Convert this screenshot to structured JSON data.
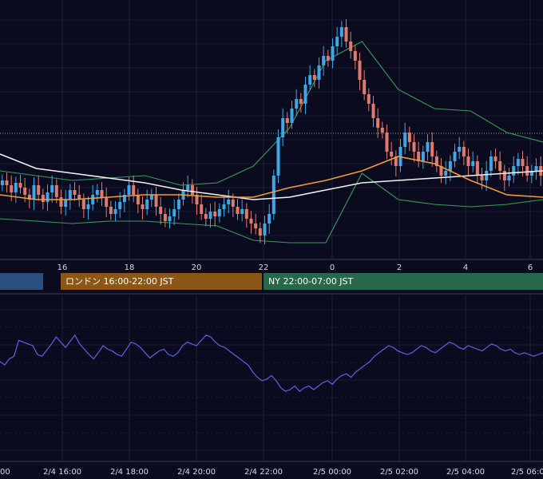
{
  "colors": {
    "background": "#0a0b1e",
    "grid": "#2a2d45",
    "candle_up": "#3fa7e6",
    "candle_down": "#e07a6e",
    "bollinger": "#3c9a5a",
    "ma_short": "#f29b3c",
    "ma_long": "#f2f2f2",
    "oscillator": "#5b63e6",
    "session_tokyo": "#2a4f7e",
    "session_london": "#8a5716",
    "session_ny": "#27684a"
  },
  "sessions": [
    {
      "label": "",
      "color": "#2a4f7e"
    },
    {
      "label": "ロンドン 16:00-22:00 JST",
      "color": "#8a5716"
    },
    {
      "label": "NY 22:00-07:00 JST",
      "color": "#27684a"
    }
  ],
  "chart_data": [
    {
      "type": "candlestick",
      "title": "",
      "x_tick_labels": [
        "16",
        "18",
        "20",
        "22",
        "0",
        "2",
        "4",
        "6"
      ],
      "series": [
        {
          "name": "",
          "kind": "bollinger_upper"
        },
        {
          "name": "",
          "kind": "bollinger_lower"
        },
        {
          "name": "",
          "kind": "ma_short"
        },
        {
          "name": "",
          "kind": "ma_long"
        }
      ],
      "ma_short": [
        0.78,
        0.8,
        0.8,
        0.79,
        0.78,
        0.78,
        0.79,
        0.79,
        0.75,
        0.72,
        0.68,
        0.62,
        0.65,
        0.72,
        0.78,
        0.79
      ],
      "ma_long": [
        0.61,
        0.67,
        0.69,
        0.71,
        0.73,
        0.76,
        0.78,
        0.8,
        0.79,
        0.76,
        0.73,
        0.72,
        0.71,
        0.7,
        0.69,
        0.68
      ],
      "bb_upper": [
        0.68,
        0.7,
        0.72,
        0.71,
        0.7,
        0.74,
        0.73,
        0.66,
        0.5,
        0.22,
        0.14,
        0.34,
        0.42,
        0.43,
        0.52,
        0.56
      ],
      "bb_lower": [
        0.88,
        0.89,
        0.9,
        0.89,
        0.89,
        0.9,
        0.91,
        0.97,
        0.98,
        0.98,
        0.69,
        0.8,
        0.82,
        0.83,
        0.82,
        0.8
      ],
      "closes": [
        0.72,
        0.74,
        0.77,
        0.73,
        0.75,
        0.78,
        0.8,
        0.74,
        0.78,
        0.81,
        0.77,
        0.74,
        0.79,
        0.83,
        0.8,
        0.76,
        0.78,
        0.8,
        0.84,
        0.82,
        0.78,
        0.76,
        0.79,
        0.83,
        0.86,
        0.84,
        0.81,
        0.78,
        0.74,
        0.78,
        0.82,
        0.84,
        0.8,
        0.78,
        0.83,
        0.86,
        0.89,
        0.87,
        0.84,
        0.8,
        0.76,
        0.74,
        0.78,
        0.82,
        0.86,
        0.88,
        0.85,
        0.87,
        0.84,
        0.82,
        0.8,
        0.83,
        0.86,
        0.84,
        0.88,
        0.9,
        0.92,
        0.95,
        0.9,
        0.86,
        0.7,
        0.54,
        0.46,
        0.48,
        0.42,
        0.38,
        0.4,
        0.32,
        0.28,
        0.3,
        0.24,
        0.2,
        0.22,
        0.16,
        0.12,
        0.08,
        0.14,
        0.18,
        0.22,
        0.3,
        0.36,
        0.4,
        0.46,
        0.5,
        0.52,
        0.6,
        0.62,
        0.66,
        0.58,
        0.52,
        0.56,
        0.6,
        0.64,
        0.6,
        0.56,
        0.62,
        0.66,
        0.7,
        0.68,
        0.64,
        0.6,
        0.58,
        0.62,
        0.66,
        0.64,
        0.7,
        0.72,
        0.68,
        0.62,
        0.64,
        0.68,
        0.72,
        0.7,
        0.66,
        0.63,
        0.66,
        0.7,
        0.68,
        0.66,
        0.7
      ],
      "oscillator": [
        0.52,
        0.48,
        0.55,
        0.58,
        0.76,
        0.74,
        0.72,
        0.7,
        0.6,
        0.58,
        0.65,
        0.72,
        0.8,
        0.74,
        0.68,
        0.75,
        0.82,
        0.72,
        0.66,
        0.6,
        0.55,
        0.62,
        0.7,
        0.66,
        0.64,
        0.6,
        0.58,
        0.66,
        0.74,
        0.72,
        0.68,
        0.62,
        0.56,
        0.6,
        0.64,
        0.66,
        0.6,
        0.58,
        0.62,
        0.7,
        0.74,
        0.72,
        0.7,
        0.76,
        0.82,
        0.8,
        0.74,
        0.7,
        0.68,
        0.64,
        0.6,
        0.56,
        0.52,
        0.48,
        0.4,
        0.34,
        0.3,
        0.32,
        0.36,
        0.3,
        0.22,
        0.18,
        0.2,
        0.24,
        0.18,
        0.22,
        0.24,
        0.2,
        0.24,
        0.28,
        0.3,
        0.26,
        0.32,
        0.36,
        0.38,
        0.34,
        0.4,
        0.44,
        0.48,
        0.52,
        0.58,
        0.62,
        0.66,
        0.7,
        0.68,
        0.64,
        0.62,
        0.6,
        0.62,
        0.66,
        0.7,
        0.68,
        0.64,
        0.62,
        0.66,
        0.7,
        0.74,
        0.72,
        0.68,
        0.66,
        0.7,
        0.68,
        0.66,
        0.64,
        0.68,
        0.72,
        0.7,
        0.66,
        0.64,
        0.66,
        0.62,
        0.6,
        0.62,
        0.6,
        0.58,
        0.6,
        0.62
      ]
    },
    {
      "type": "line",
      "title": "",
      "x_tick_labels": [
        "2/4 16:00",
        "2/4 18:00",
        "2/4 20:00",
        "2/4 22:00",
        "2/5 00:00",
        "2/5 02:00",
        "2/5 04:00",
        "2/5 06:00"
      ],
      "first_tick_partial": "00"
    }
  ]
}
